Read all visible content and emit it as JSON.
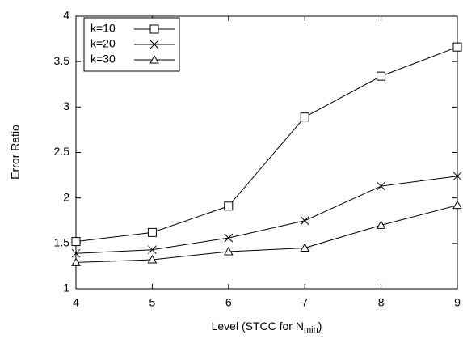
{
  "chart_data": {
    "type": "line",
    "x_label": [
      "Level (STCC for N",
      "min",
      ")"
    ],
    "y_label": "Error Ratio",
    "x": [
      4,
      5,
      6,
      7,
      8,
      9
    ],
    "xlim": [
      4,
      9
    ],
    "xticks": [
      4,
      5,
      6,
      7,
      8,
      9
    ],
    "ylim": [
      1,
      4
    ],
    "yticks": [
      1,
      1.5,
      2,
      2.5,
      3,
      3.5,
      4
    ],
    "legend": "upper-left",
    "series": [
      {
        "name": "k=10",
        "color": "#000000",
        "marker": "square",
        "values": [
          1.52,
          1.62,
          1.91,
          2.89,
          3.34,
          3.66
        ]
      },
      {
        "name": "k=20",
        "color": "#000000",
        "marker": "x",
        "values": [
          1.39,
          1.43,
          1.56,
          1.75,
          2.13,
          2.24
        ]
      },
      {
        "name": "k=30",
        "color": "#000000",
        "marker": "triangle",
        "values": [
          1.29,
          1.32,
          1.41,
          1.45,
          1.7,
          1.92
        ]
      }
    ]
  }
}
